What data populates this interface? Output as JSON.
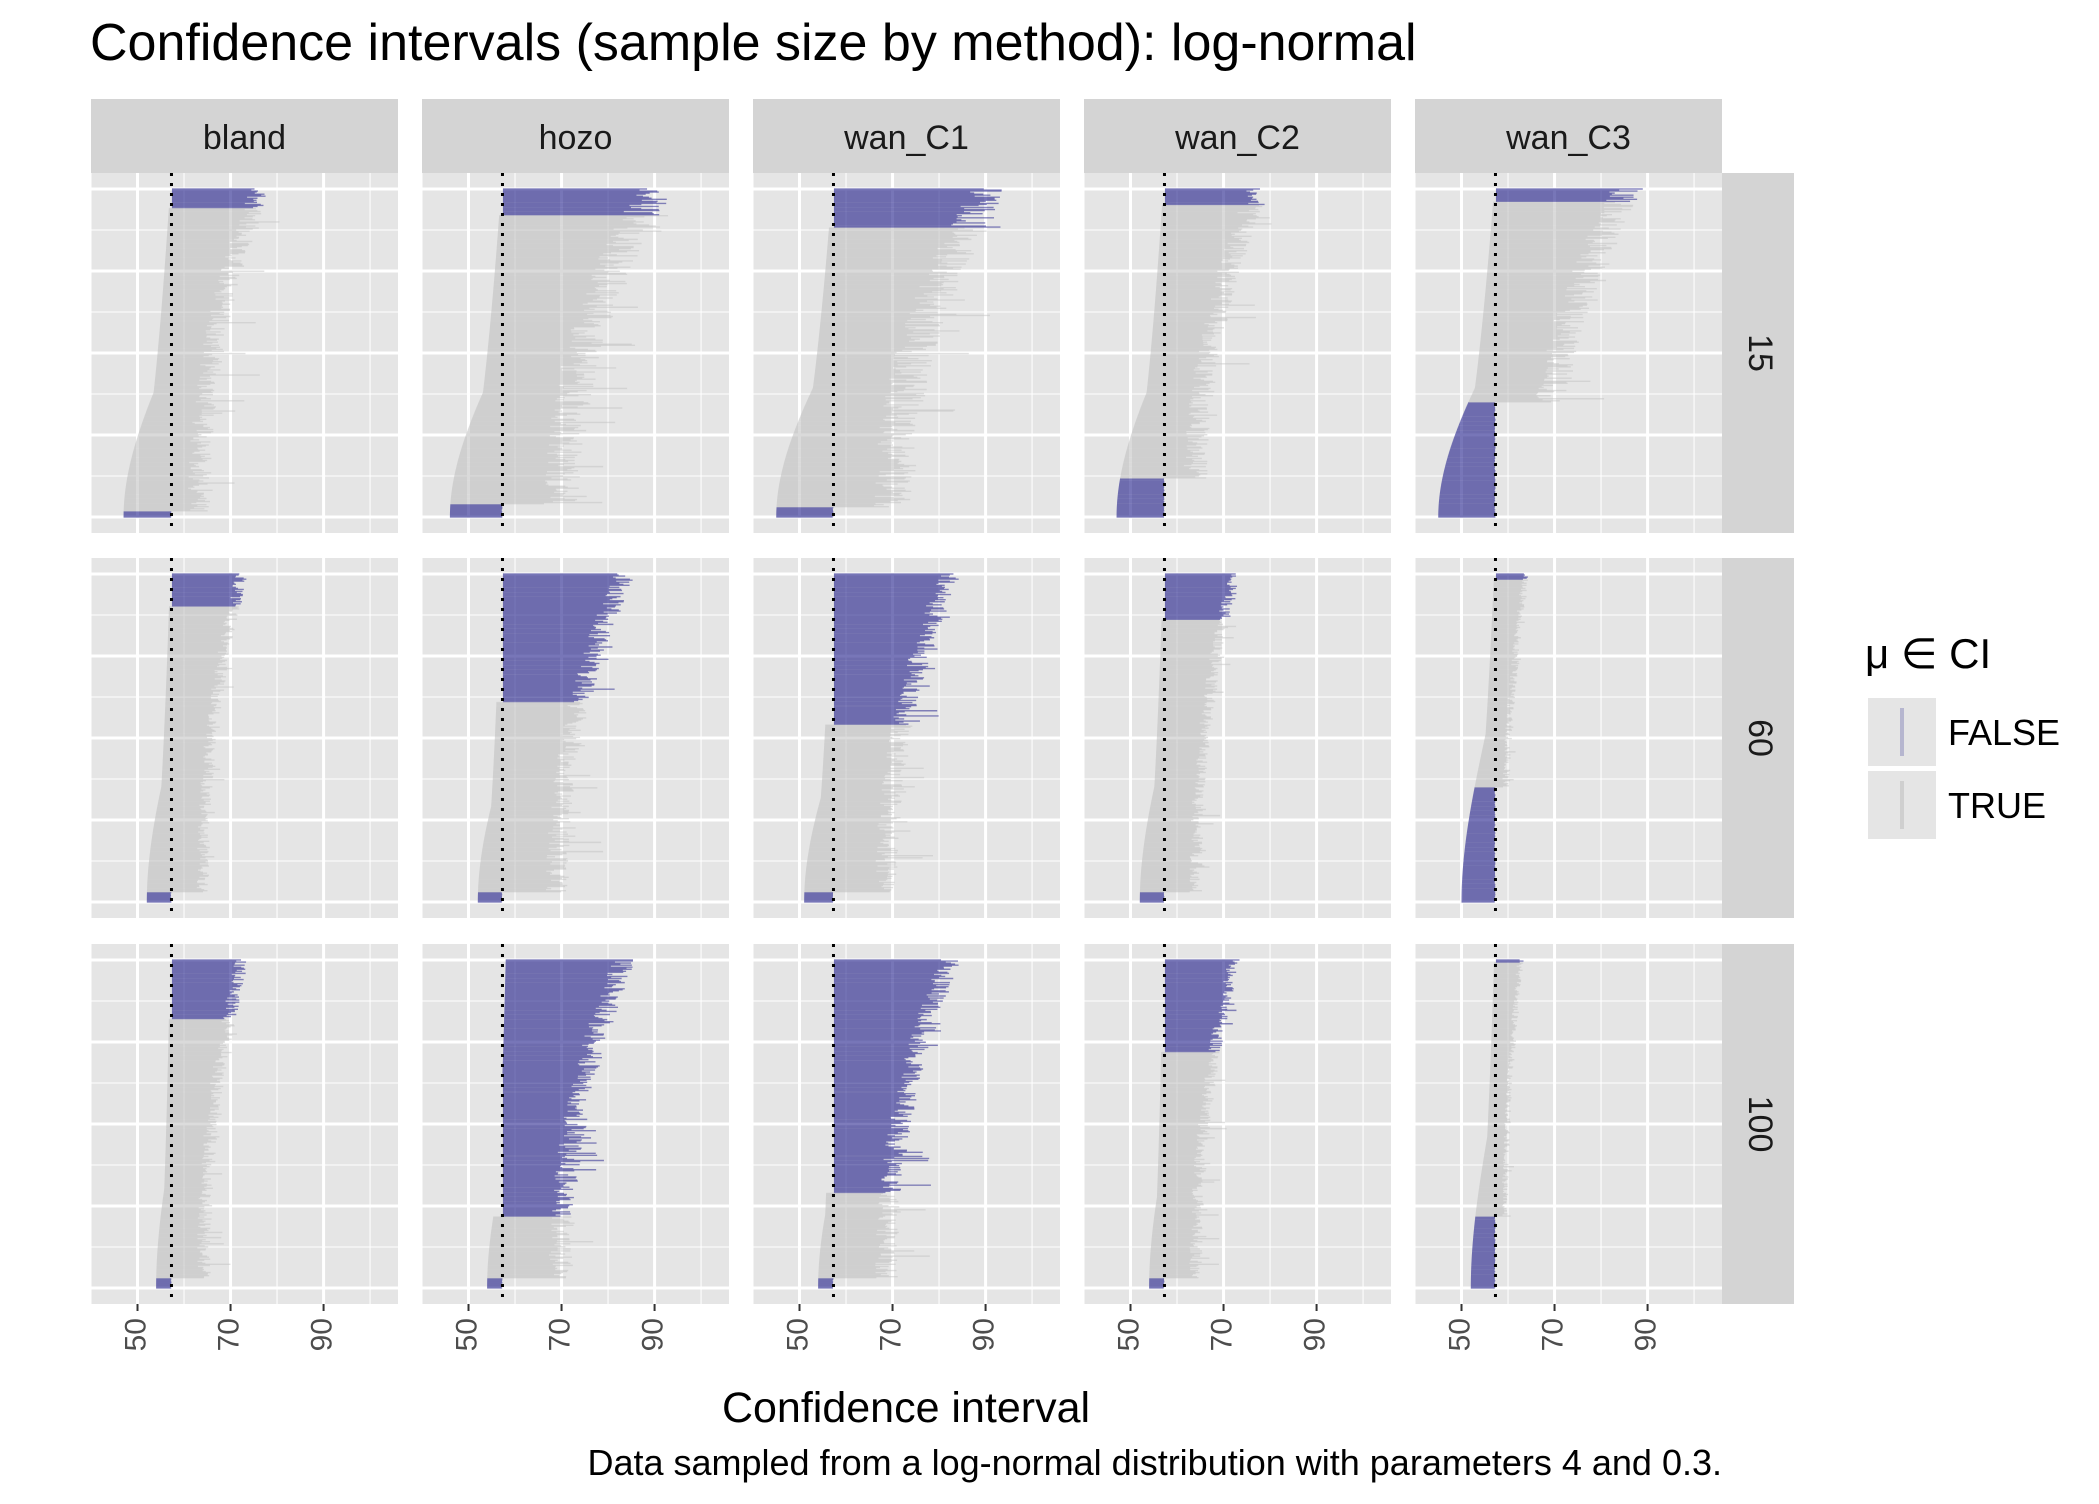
{
  "title": "Confidence intervals (sample size by method): log-normal",
  "caption": "Data sampled from a log-normal distribution with parameters 4 and 0.3.",
  "colors": {
    "panel_bg": "#e5e5e5",
    "grid": "#ffffff",
    "strip_bg": "#d4d4d4",
    "false_color": "#2b2a8f",
    "true_color": "#bdbdbd",
    "true_light": "#d3d3d3",
    "reference_line": "#000000",
    "text": "#000000",
    "axis_text": "#4d4d4d"
  },
  "chart_data": {
    "type": "interval-plot",
    "title": "Confidence intervals (sample size by method): log-normal",
    "caption": "Data sampled from a log-normal distribution with parameters 4 and 0.3.",
    "xlabel": "Confidence interval",
    "ylabel": "",
    "methods": [
      "bland",
      "hozo",
      "wan_C1",
      "wan_C2",
      "wan_C3"
    ],
    "sample_sizes": [
      "15",
      "60",
      "100"
    ],
    "x_ticks": [
      50,
      70,
      90
    ],
    "x_tick_labels": [
      "50",
      "70",
      "90"
    ],
    "x_range": [
      40,
      106
    ],
    "reference_value": 57.3,
    "grid": true,
    "legend": {
      "title": "μ ∈ CI",
      "position": "right",
      "entries": [
        {
          "label": "FALSE",
          "color": "#2b2a8f"
        },
        {
          "label": "TRUE",
          "color": "#bdbdbd"
        }
      ]
    },
    "panels": [
      {
        "method": "bland",
        "n": "15",
        "lower_range": [
          47,
          57
        ],
        "mid_range": [
          52,
          67
        ],
        "upper_range": [
          60,
          74
        ],
        "tail_max": 84,
        "false_bottom": 0.02,
        "false_top": 0.06
      },
      {
        "method": "hozo",
        "n": "15",
        "lower_range": [
          46,
          57
        ],
        "mid_range": [
          53,
          68
        ],
        "upper_range": [
          62,
          86
        ],
        "tail_max": 96,
        "false_bottom": 0.04,
        "false_top": 0.08
      },
      {
        "method": "wan_C1",
        "n": "15",
        "lower_range": [
          45,
          57
        ],
        "mid_range": [
          52,
          68
        ],
        "upper_range": [
          62,
          87
        ],
        "tail_max": 98,
        "false_bottom": 0.03,
        "false_top": 0.12
      },
      {
        "method": "wan_C2",
        "n": "15",
        "lower_range": [
          47,
          57
        ],
        "mid_range": [
          52,
          67
        ],
        "upper_range": [
          60,
          75
        ],
        "tail_max": 84,
        "false_bottom": 0.12,
        "false_top": 0.05
      },
      {
        "method": "wan_C3",
        "n": "15",
        "lower_range": [
          45,
          57
        ],
        "mid_range": [
          52,
          68
        ],
        "upper_range": [
          62,
          82
        ],
        "tail_max": 90,
        "false_bottom": 0.35,
        "false_top": 0.04
      },
      {
        "method": "bland",
        "n": "60",
        "lower_range": [
          52,
          57
        ],
        "mid_range": [
          57,
          63
        ],
        "upper_range": [
          63,
          71
        ],
        "tail_max": 74,
        "false_bottom": 0.03,
        "false_top": 0.1
      },
      {
        "method": "hozo",
        "n": "60",
        "lower_range": [
          52,
          57
        ],
        "mid_range": [
          57,
          66
        ],
        "upper_range": [
          67,
          81
        ],
        "tail_max": 86,
        "false_bottom": 0.03,
        "false_top": 0.39
      },
      {
        "method": "wan_C1",
        "n": "60",
        "lower_range": [
          51,
          57
        ],
        "mid_range": [
          57,
          66
        ],
        "upper_range": [
          66,
          80
        ],
        "tail_max": 84,
        "false_bottom": 0.03,
        "false_top": 0.46
      },
      {
        "method": "wan_C2",
        "n": "60",
        "lower_range": [
          52,
          57
        ],
        "mid_range": [
          57,
          63
        ],
        "upper_range": [
          63,
          71
        ],
        "tail_max": 74,
        "false_bottom": 0.03,
        "false_top": 0.14
      },
      {
        "method": "wan_C3",
        "n": "60",
        "lower_range": [
          50,
          57
        ],
        "mid_range": [
          55,
          60
        ],
        "upper_range": [
          58,
          63
        ],
        "tail_max": 64,
        "false_bottom": 0.35,
        "false_top": 0.02
      },
      {
        "method": "bland",
        "n": "100",
        "lower_range": [
          54,
          57
        ],
        "mid_range": [
          57,
          62
        ],
        "upper_range": [
          62,
          71
        ],
        "tail_max": 74,
        "false_bottom": 0.03,
        "false_top": 0.18
      },
      {
        "method": "hozo",
        "n": "100",
        "lower_range": [
          54,
          58
        ],
        "mid_range": [
          58,
          65
        ],
        "upper_range": [
          66,
          81
        ],
        "tail_max": 86,
        "false_bottom": 0.03,
        "false_top": 0.78
      },
      {
        "method": "wan_C1",
        "n": "100",
        "lower_range": [
          54,
          57
        ],
        "mid_range": [
          57,
          66
        ],
        "upper_range": [
          66,
          80
        ],
        "tail_max": 84,
        "false_bottom": 0.03,
        "false_top": 0.71
      },
      {
        "method": "wan_C2",
        "n": "100",
        "lower_range": [
          54,
          57
        ],
        "mid_range": [
          57,
          63
        ],
        "upper_range": [
          63,
          71
        ],
        "tail_max": 74,
        "false_bottom": 0.03,
        "false_top": 0.28
      },
      {
        "method": "wan_C3",
        "n": "100",
        "lower_range": [
          52,
          57
        ],
        "mid_range": [
          56,
          60
        ],
        "upper_range": [
          58,
          62
        ],
        "tail_max": 63,
        "false_bottom": 0.22,
        "false_top": 0.01
      }
    ]
  }
}
